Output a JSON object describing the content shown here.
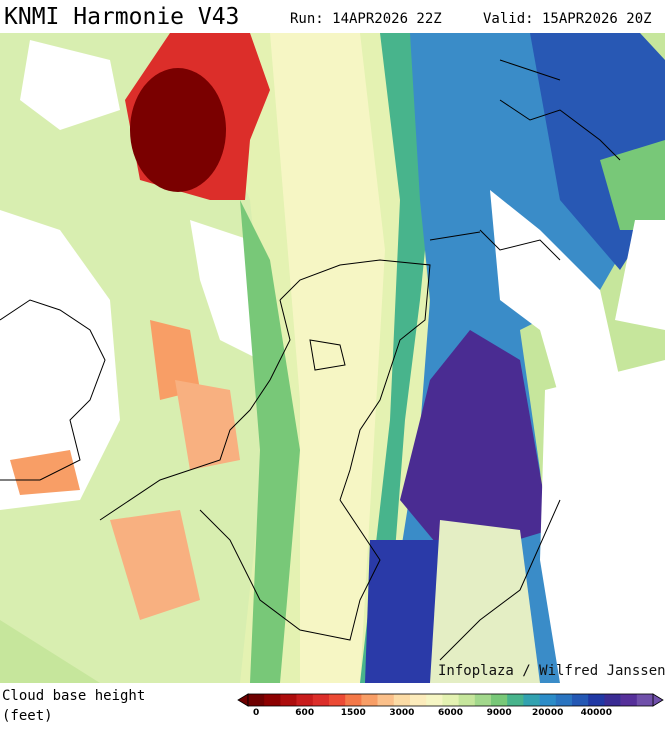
{
  "header": {
    "title": "KNMI Harmonie V43",
    "run": "Run: 14APR2026 22Z",
    "valid": "Valid: 15APR2026 20Z"
  },
  "map": {
    "credit": "Infoplaza / Wilfred Janssen"
  },
  "legend": {
    "label": [
      "Cloud base height",
      "(feet)"
    ],
    "colors": [
      "#6e0000",
      "#8c0000",
      "#ad0c0c",
      "#c81c1c",
      "#dc2e2a",
      "#ec4a34",
      "#f47848",
      "#f89e66",
      "#fbc08a",
      "#fcdca6",
      "#fcecbc",
      "#f6f6c4",
      "#e4f2b2",
      "#c6e69c",
      "#a2d88c",
      "#78c878",
      "#48b48c",
      "#32a2b0",
      "#2c8cc8",
      "#2a74c0",
      "#2458b4",
      "#2038a4",
      "#3a2c94",
      "#56309a",
      "#7050aa"
    ],
    "ticks": [
      0,
      600,
      1500,
      3000,
      6000,
      9000,
      20000,
      40000
    ]
  }
}
